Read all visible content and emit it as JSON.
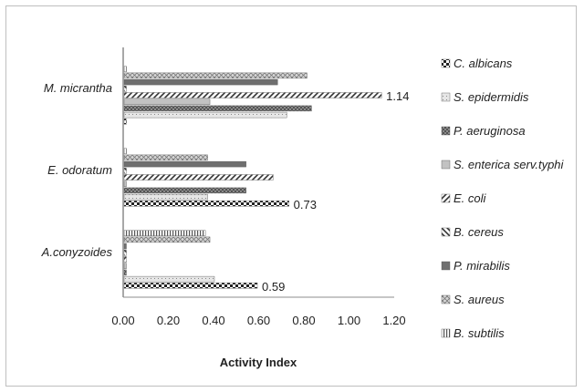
{
  "chart_data": {
    "type": "bar",
    "orientation": "horizontal",
    "title": "",
    "xlabel": "Activity Index",
    "ylabel": "",
    "xlim": [
      0,
      1.2
    ],
    "x_ticks": [
      "0.00",
      "0.20",
      "0.40",
      "0.60",
      "0.80",
      "1.00",
      "1.20"
    ],
    "grid": false,
    "legend_position": "right",
    "categories": [
      "M. micrantha",
      "E. odoratum",
      "A.conyzoides"
    ],
    "series": [
      {
        "name": "C. albicans",
        "values": [
          0.0,
          0.73,
          0.59
        ],
        "pattern": "checker"
      },
      {
        "name": "S. epidermidis",
        "values": [
          0.72,
          0.37,
          0.4
        ],
        "pattern": "dots"
      },
      {
        "name": "P. aeruginosa",
        "values": [
          0.83,
          0.54,
          0.0
        ],
        "pattern": "crosshatch"
      },
      {
        "name": "S. enterica serv.typhi",
        "values": [
          0.38,
          0.0,
          0.0
        ],
        "pattern": "gray"
      },
      {
        "name": "E. coli",
        "values": [
          1.14,
          0.66,
          0.0
        ],
        "pattern": "diag-up"
      },
      {
        "name": "B. cereus",
        "values": [
          0.0,
          0.0,
          0.0
        ],
        "pattern": "diag-down"
      },
      {
        "name": "P. mirabilis",
        "values": [
          0.68,
          0.54,
          0.0
        ],
        "pattern": "darkgray"
      },
      {
        "name": "S. aureus",
        "values": [
          0.81,
          0.37,
          0.38
        ],
        "pattern": "diag-cross"
      },
      {
        "name": "B. subtilis",
        "values": [
          0.0,
          0.0,
          0.36
        ],
        "pattern": "vlines"
      }
    ],
    "data_labels": [
      {
        "category": "M. micrantha",
        "series": "E. coli",
        "text": "1.14"
      },
      {
        "category": "E. odoratum",
        "series": "C. albicans",
        "text": "0.73"
      },
      {
        "category": "A.conyzoides",
        "series": "C. albicans",
        "text": "0.59"
      }
    ]
  },
  "colors": {
    "axis": "#8c8c8c",
    "bar_dark": "#333333",
    "bar_mid": "#8a8a8a",
    "frame": "#bfbfbf"
  }
}
